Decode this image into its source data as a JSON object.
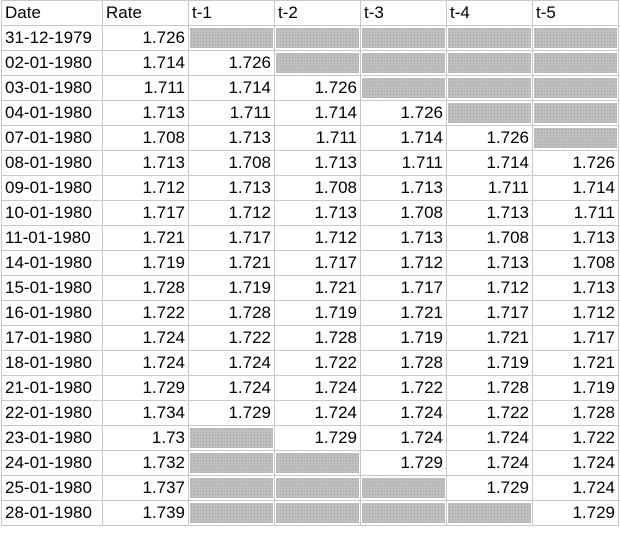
{
  "sheet": {
    "headers": [
      "Date",
      "Rate",
      "t-1",
      "t-2",
      "t-3",
      "t-4",
      "t-5"
    ],
    "rows": [
      [
        "31-12-1979",
        "1.726",
        "",
        "",
        "",
        "",
        ""
      ],
      [
        "02-01-1980",
        "1.714",
        "1.726",
        "",
        "",
        "",
        ""
      ],
      [
        "03-01-1980",
        "1.711",
        "1.714",
        "1.726",
        "",
        "",
        ""
      ],
      [
        "04-01-1980",
        "1.713",
        "1.711",
        "1.714",
        "1.726",
        "",
        ""
      ],
      [
        "07-01-1980",
        "1.708",
        "1.713",
        "1.711",
        "1.714",
        "1.726",
        ""
      ],
      [
        "08-01-1980",
        "1.713",
        "1.708",
        "1.713",
        "1.711",
        "1.714",
        "1.726"
      ],
      [
        "09-01-1980",
        "1.712",
        "1.713",
        "1.708",
        "1.713",
        "1.711",
        "1.714"
      ],
      [
        "10-01-1980",
        "1.717",
        "1.712",
        "1.713",
        "1.708",
        "1.713",
        "1.711"
      ],
      [
        "11-01-1980",
        "1.721",
        "1.717",
        "1.712",
        "1.713",
        "1.708",
        "1.713"
      ],
      [
        "14-01-1980",
        "1.719",
        "1.721",
        "1.717",
        "1.712",
        "1.713",
        "1.708"
      ],
      [
        "15-01-1980",
        "1.728",
        "1.719",
        "1.721",
        "1.717",
        "1.712",
        "1.713"
      ],
      [
        "16-01-1980",
        "1.722",
        "1.728",
        "1.719",
        "1.721",
        "1.717",
        "1.712"
      ],
      [
        "17-01-1980",
        "1.724",
        "1.722",
        "1.728",
        "1.719",
        "1.721",
        "1.717"
      ],
      [
        "18-01-1980",
        "1.724",
        "1.724",
        "1.722",
        "1.728",
        "1.719",
        "1.721"
      ],
      [
        "21-01-1980",
        "1.729",
        "1.724",
        "1.724",
        "1.722",
        "1.728",
        "1.719"
      ],
      [
        "22-01-1980",
        "1.734",
        "1.729",
        "1.724",
        "1.724",
        "1.722",
        "1.728"
      ],
      [
        "23-01-1980",
        "1.73",
        "",
        "1.729",
        "1.724",
        "1.724",
        "1.722"
      ],
      [
        "24-01-1980",
        "1.732",
        "",
        "",
        "1.729",
        "1.724",
        "1.724"
      ],
      [
        "25-01-1980",
        "1.737",
        "",
        "",
        "",
        "1.729",
        "1.724"
      ],
      [
        "28-01-1980",
        "1.739",
        "",
        "",
        "",
        "",
        "1.729"
      ]
    ]
  }
}
